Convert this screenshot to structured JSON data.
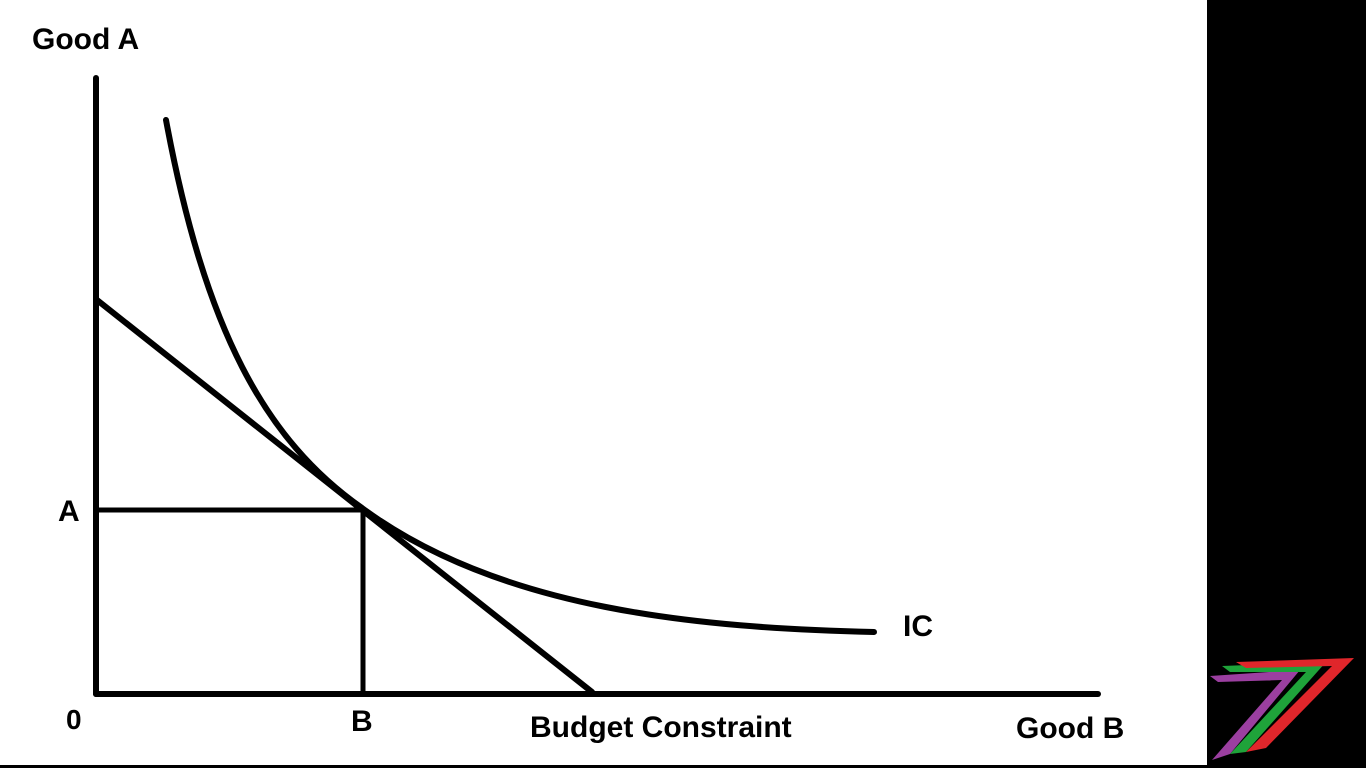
{
  "diagram": {
    "y_axis_label": "Good A",
    "x_axis_label": "Good B",
    "origin_label": "0",
    "point_a_label": "A",
    "point_b_label": "B",
    "curve_label": "IC",
    "line_label": "Budget Constraint"
  },
  "colors": {
    "background": "#ffffff",
    "panel": "#000000",
    "ink": "#000000",
    "logo_purple": "#9b3fa0",
    "logo_green": "#1fa33a",
    "logo_red": "#e0262b"
  },
  "logo": {
    "icon": "seven-chevron-logo-icon"
  }
}
